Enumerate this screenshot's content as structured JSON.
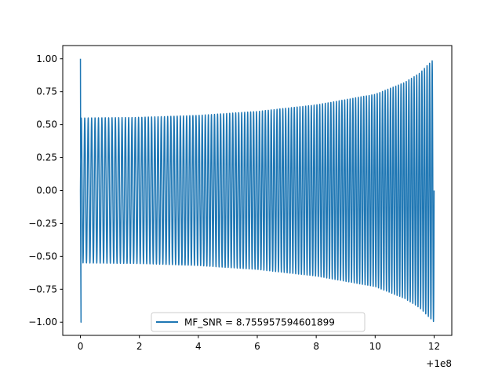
{
  "chart_data": {
    "type": "line",
    "x_offset_label": "+1e8",
    "xlim": [
      -0.6,
      12.6
    ],
    "ylim": [
      -1.1,
      1.1
    ],
    "x_ticks": [
      0,
      2,
      4,
      6,
      8,
      10,
      12
    ],
    "x_tick_labels": [
      "0",
      "2",
      "4",
      "6",
      "8",
      "10",
      "12"
    ],
    "y_ticks": [
      1.0,
      0.75,
      0.5,
      0.25,
      0.0,
      -0.25,
      -0.5,
      -0.75,
      -1.0
    ],
    "y_tick_labels": [
      "1.00",
      "0.75",
      "0.50",
      "0.25",
      "0.00",
      "−0.25",
      "−0.50",
      "−0.75",
      "−1.00"
    ],
    "series": [
      {
        "name": "MF_SNR = 8.755957594601899",
        "color": "#1f77b4",
        "description": "chirp-like oscillation, spike to ±1.0 near x=0, envelope ≈0.55 rising to 1.0 at x=12",
        "x_start": 0.0,
        "x_end": 12.0,
        "cycles": 120,
        "envelope": [
          {
            "x": 0.0,
            "amp": 0.55
          },
          {
            "x": 2.0,
            "amp": 0.555
          },
          {
            "x": 4.0,
            "amp": 0.57
          },
          {
            "x": 6.0,
            "amp": 0.6
          },
          {
            "x": 8.0,
            "amp": 0.65
          },
          {
            "x": 10.0,
            "amp": 0.73
          },
          {
            "x": 11.0,
            "amp": 0.82
          },
          {
            "x": 11.5,
            "amp": 0.89
          },
          {
            "x": 12.0,
            "amp": 1.0
          }
        ],
        "initial_spike": {
          "x": 0.0,
          "max": 1.0,
          "min": -1.0
        }
      }
    ],
    "legend": {
      "position": "lower-center",
      "label": "MF_SNR = 8.755957594601899"
    },
    "grid": false
  }
}
